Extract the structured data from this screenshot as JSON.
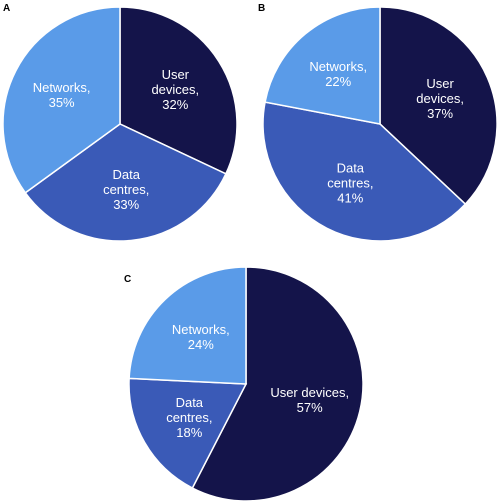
{
  "colors": {
    "user_devices": "#14144a",
    "data_centres": "#3a5ab7",
    "networks": "#5a9be8"
  },
  "chart_data": [
    {
      "type": "pie",
      "panel": "A",
      "start_angle_deg": 0,
      "direction": "clockwise",
      "slices": [
        {
          "key": "user_devices",
          "label_lines": [
            "User",
            "devices,",
            "32%"
          ],
          "value": 32
        },
        {
          "key": "data_centres",
          "label_lines": [
            "Data",
            "centres,",
            "33%"
          ],
          "value": 33
        },
        {
          "key": "networks",
          "label_lines": [
            "Networks,",
            "35%"
          ],
          "value": 35
        }
      ]
    },
    {
      "type": "pie",
      "panel": "B",
      "start_angle_deg": 0,
      "direction": "clockwise",
      "slices": [
        {
          "key": "user_devices",
          "label_lines": [
            "User",
            "devices,",
            "37%"
          ],
          "value": 37
        },
        {
          "key": "data_centres",
          "label_lines": [
            "Data",
            "centres,",
            "41%"
          ],
          "value": 41
        },
        {
          "key": "networks",
          "label_lines": [
            "Networks,",
            "22%"
          ],
          "value": 22
        }
      ]
    },
    {
      "type": "pie",
      "panel": "C",
      "start_angle_deg": 0,
      "direction": "clockwise",
      "slices": [
        {
          "key": "user_devices",
          "label_lines": [
            "User devices,",
            "57%"
          ],
          "value": 57
        },
        {
          "key": "data_centres",
          "label_lines": [
            "Data",
            "centres,",
            "18%"
          ],
          "value": 18
        },
        {
          "key": "networks",
          "label_lines": [
            "Networks,",
            "24%"
          ],
          "value": 24
        }
      ]
    }
  ]
}
